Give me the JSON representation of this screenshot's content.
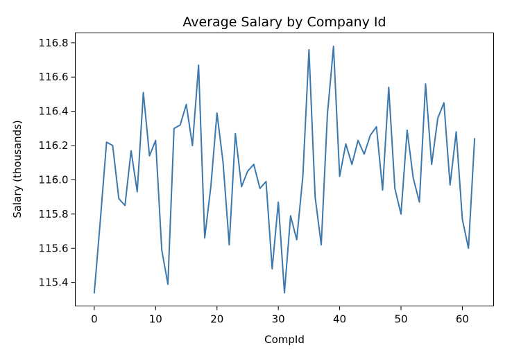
{
  "chart_data": {
    "type": "line",
    "title": "Average Salary by Company Id",
    "xlabel": "CompId",
    "ylabel": "Salary (thousands)",
    "xlim": [
      -3.1,
      65.1
    ],
    "ylim": [
      115.263,
      116.858
    ],
    "xticks": [
      0,
      10,
      20,
      30,
      40,
      50,
      60
    ],
    "xtick_labels": [
      "0",
      "10",
      "20",
      "30",
      "40",
      "50",
      "60"
    ],
    "yticks": [
      115.4,
      115.6,
      115.8,
      116.0,
      116.2,
      116.4,
      116.6,
      116.8
    ],
    "ytick_labels": [
      "115.4",
      "115.6",
      "115.8",
      "116.0",
      "116.2",
      "116.4",
      "116.6",
      "116.8"
    ],
    "grid": false,
    "series": [
      {
        "color": "#3a78ae",
        "x": [
          0,
          1,
          2,
          3,
          4,
          5,
          6,
          7,
          8,
          9,
          10,
          11,
          12,
          13,
          14,
          15,
          16,
          17,
          18,
          19,
          20,
          21,
          22,
          23,
          24,
          25,
          26,
          27,
          28,
          29,
          30,
          31,
          32,
          33,
          34,
          35,
          36,
          37,
          38,
          39,
          40,
          41,
          42,
          43,
          44,
          45,
          46,
          47,
          48,
          49,
          50,
          51,
          52,
          53,
          54,
          55,
          56,
          57,
          58,
          59,
          60,
          61,
          62
        ],
        "y": [
          115.34,
          115.77,
          116.22,
          116.2,
          115.89,
          115.85,
          116.17,
          115.93,
          116.51,
          116.14,
          116.23,
          115.59,
          115.39,
          116.3,
          116.32,
          116.44,
          116.2,
          116.67,
          115.66,
          115.96,
          116.39,
          116.1,
          115.62,
          116.27,
          115.96,
          116.05,
          116.09,
          115.95,
          115.99,
          115.48,
          115.87,
          115.34,
          115.79,
          115.65,
          116.02,
          116.76,
          115.9,
          115.62,
          116.38,
          116.78,
          116.02,
          116.21,
          116.09,
          116.23,
          116.15,
          116.26,
          116.31,
          115.94,
          116.54,
          115.95,
          115.8,
          116.29,
          116.01,
          115.87,
          116.56,
          116.09,
          116.36,
          116.45,
          115.97,
          116.28,
          115.77,
          115.6,
          116.24
        ]
      }
    ]
  }
}
